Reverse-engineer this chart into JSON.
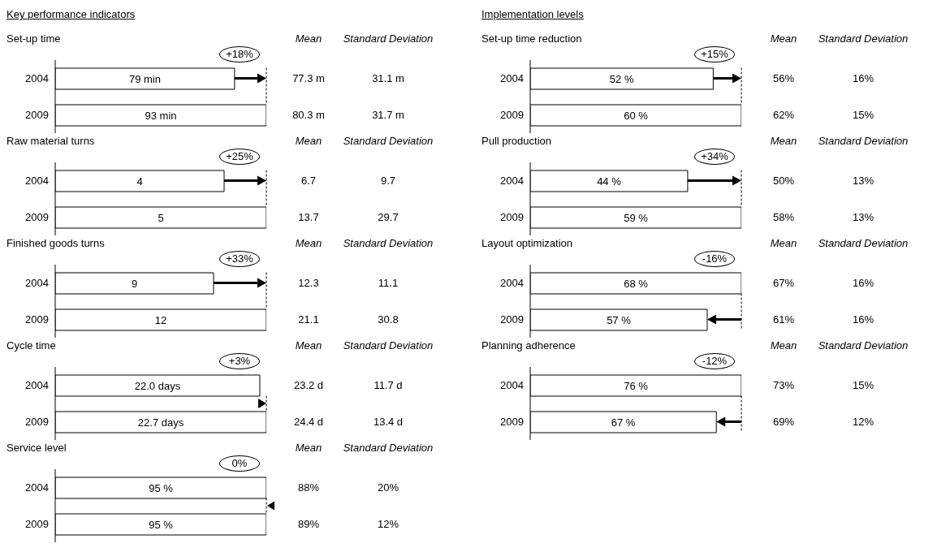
{
  "chart_data": [
    {
      "type": "bar",
      "orientation": "horizontal",
      "subtitle": "Key performance indicators",
      "title": "Set-up time",
      "categories": [
        "2004",
        "2009"
      ],
      "values": [
        79,
        93
      ],
      "value_labels": [
        "79 min",
        "93 min"
      ],
      "color": "#ffffff",
      "annotations": [
        "+18%",
        "Mean",
        "Standard Deviation",
        "77.3 m",
        "31.1 m",
        "80.3 m",
        "31.7 m"
      ]
    },
    {
      "type": "bar",
      "orientation": "horizontal",
      "title": "Raw material turns",
      "categories": [
        "2004",
        "2009"
      ],
      "values": [
        4,
        5
      ],
      "data_labels": true,
      "color": "#ffffff",
      "annotations": [
        "+25%",
        "Mean",
        "Standard Deviation",
        "6.7",
        "9.7",
        "13.7",
        "29.7"
      ]
    },
    {
      "type": "bar",
      "orientation": "horizontal",
      "title": "Finished goods turns",
      "categories": [
        "2004",
        "2009"
      ],
      "values": [
        9,
        12
      ],
      "data_labels": true,
      "color": "#ffffff",
      "annotations": [
        "+33%",
        "Mean",
        "Standard Deviation",
        "12.3",
        "11.1",
        "21.1",
        "30.8"
      ]
    },
    {
      "type": "bar",
      "orientation": "horizontal",
      "title": "Cycle time",
      "categories": [
        "2004",
        "2009"
      ],
      "values": [
        22.0,
        22.7
      ],
      "value_labels": [
        "22.0 days",
        "22.7 days"
      ],
      "color": "#ffffff",
      "annotations": [
        "+3%",
        "Mean",
        "Standard Deviation",
        "23.2 d",
        "11.7 d",
        "24.4 d",
        "13.4 d"
      ]
    },
    {
      "type": "bar",
      "orientation": "horizontal",
      "title": "Service level",
      "categories": [
        "2004",
        "2009"
      ],
      "values": [
        95,
        95
      ],
      "value_labels": [
        "95 %",
        "95 %"
      ],
      "color": "#ffffff",
      "annotations": [
        "0%",
        "Mean",
        "Standard Deviation",
        "88%",
        "20%",
        "89%",
        "12%"
      ]
    },
    {
      "type": "bar",
      "orientation": "horizontal",
      "subtitle": "Implementation levels",
      "title": "Set-up time reduction",
      "categories": [
        "2004",
        "2009"
      ],
      "values": [
        52,
        60
      ],
      "value_labels": [
        "52 %",
        "60 %"
      ],
      "color": "#ffffff",
      "annotations": [
        "+15%",
        "Mean",
        "Standard Deviation",
        "56%",
        "16%",
        "62%",
        "15%"
      ]
    },
    {
      "type": "bar",
      "orientation": "horizontal",
      "title": "Pull production",
      "categories": [
        "2004",
        "2009"
      ],
      "values": [
        44,
        59
      ],
      "value_labels": [
        "44 %",
        "59 %"
      ],
      "color": "#ffffff",
      "annotations": [
        "+34%",
        "Mean",
        "Standard Deviation",
        "50%",
        "13%",
        "58%",
        "13%"
      ]
    },
    {
      "type": "bar",
      "orientation": "horizontal",
      "title": "Layout optimization",
      "categories": [
        "2004",
        "2009"
      ],
      "values": [
        68,
        57
      ],
      "value_labels": [
        "68 %",
        "57 %"
      ],
      "color": "#ffffff",
      "annotations": [
        "-16%",
        "Mean",
        "Standard Deviation",
        "67%",
        "16%",
        "61%",
        "16%"
      ]
    },
    {
      "type": "bar",
      "orientation": "horizontal",
      "title": "Planning adherence",
      "categories": [
        "2004",
        "2009"
      ],
      "values": [
        76,
        67
      ],
      "value_labels": [
        "76 %",
        "67 %"
      ],
      "color": "#ffffff",
      "annotations": [
        "-12%",
        "Mean",
        "Standard Deviation",
        "73%",
        "15%",
        "69%",
        "12%"
      ]
    }
  ]
}
